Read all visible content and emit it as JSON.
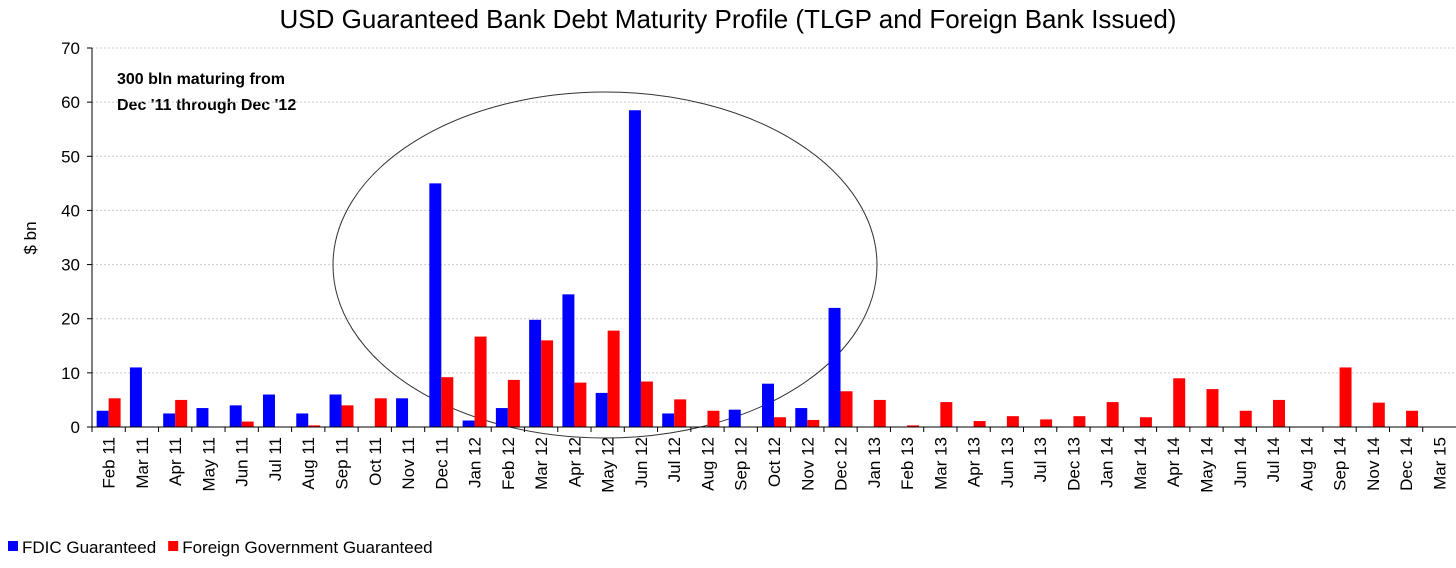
{
  "chart_data": {
    "type": "bar",
    "title": "USD Guaranteed Bank Debt Maturity Profile (TLGP and Foreign Bank Issued)",
    "y_label": "$ bn",
    "annotation": [
      "300 bln maturing from",
      "Dec '11 through Dec '12"
    ],
    "categories": [
      "Feb 11",
      "Mar 11",
      "Apr 11",
      "May 11",
      "Jun 11",
      "Jul 11",
      "Aug 11",
      "Sep 11",
      "Oct 11",
      "Nov 11",
      "Dec 11",
      "Jan 12",
      "Feb 12",
      "Mar 12",
      "Apr 12",
      "May 12",
      "Jun 12",
      "Jul 12",
      "Aug 12",
      "Sep 12",
      "Oct 12",
      "Nov 12",
      "Dec 12",
      "Jan 13",
      "Feb 13",
      "Mar 13",
      "Apr 13",
      "Jun 13",
      "Jul 13",
      "Dec 13",
      "Jan 14",
      "Mar 14",
      "Apr 14",
      "May 14",
      "Jun 14",
      "Jul 14",
      "Aug 14",
      "Sep 14",
      "Nov 14",
      "Dec 14",
      "Mar 15"
    ],
    "series": [
      {
        "name": "FDIC Guaranteed",
        "color": "#0000ff",
        "values": [
          3,
          11,
          2.5,
          3.5,
          4,
          6,
          2.5,
          6,
          0,
          5.3,
          45,
          1.2,
          3.5,
          19.8,
          24.5,
          6.3,
          58.5,
          2.5,
          0,
          3.2,
          8,
          3.5,
          22,
          0,
          0,
          0,
          0,
          0,
          0,
          0,
          0,
          0,
          0,
          0,
          0,
          0,
          0,
          0,
          0,
          0,
          0
        ]
      },
      {
        "name": "Foreign Government Guaranteed",
        "color": "#ff0000",
        "values": [
          5.3,
          0,
          5,
          0,
          1,
          0,
          0.3,
          4,
          5.3,
          0,
          9.2,
          16.7,
          8.7,
          16,
          8.2,
          17.8,
          8.4,
          5.1,
          3,
          0,
          1.8,
          1.3,
          6.6,
          5,
          0.3,
          4.6,
          1.1,
          2,
          1.4,
          2,
          4.6,
          1.8,
          9,
          7,
          3,
          5,
          0,
          11,
          4.5,
          3,
          0
        ]
      }
    ],
    "ylim": [
      0,
      70
    ],
    "yticks": [
      0,
      10,
      20,
      30,
      40,
      50,
      60,
      70
    ],
    "grid": true
  }
}
